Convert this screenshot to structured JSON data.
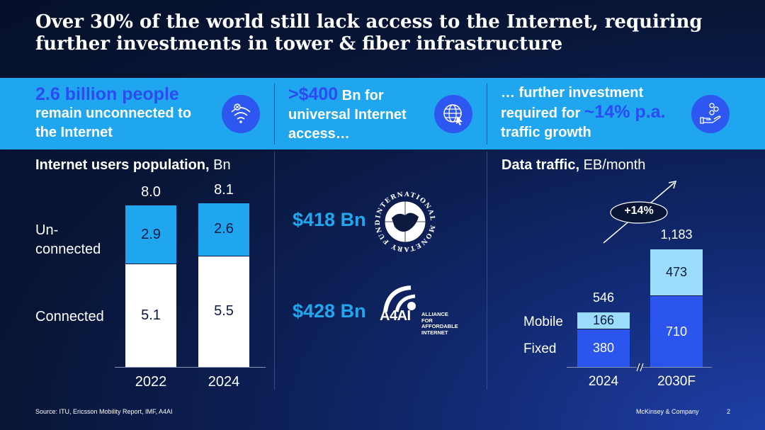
{
  "slide": {
    "title": "Over 30% of the world still lack access to the Internet, requiring further investments in tower & fiber infrastructure"
  },
  "banner": {
    "left": {
      "highlight": "2.6 billion people",
      "line2": "remain unconnected to",
      "line3": "the Internet",
      "icon": "wifi-off-icon"
    },
    "middle": {
      "highlight": ">$400",
      "rest1": " Bn for",
      "line2": "universal Internet",
      "line3": "access…",
      "icon": "globe-cursor-icon"
    },
    "right": {
      "line1": "… further investment",
      "pre": "required for ",
      "highlight": "~14% p.a.",
      "line3": "traffic growth",
      "icon": "hand-coins-icon"
    }
  },
  "left_chart": {
    "title_bold": "Internet users  population,",
    "title_rest": " Bn",
    "row_unconnected": "Un-\nconnected",
    "row_connected": "Connected",
    "chart_data": {
      "type": "bar",
      "stacked": true,
      "categories": [
        "2022",
        "2024"
      ],
      "series": [
        {
          "name": "Connected",
          "values": [
            5.1,
            5.5
          ]
        },
        {
          "name": "Unconnected",
          "values": [
            2.9,
            2.6
          ]
        }
      ],
      "totals": [
        "8.0",
        "8.1"
      ],
      "labels_connected": [
        "5.1",
        "5.5"
      ],
      "labels_unconnected": [
        "2.9",
        "2.6"
      ],
      "title": "Internet users population, Bn"
    },
    "colors": {
      "connected": "#ffffff",
      "unconnected": "#20a6ef"
    }
  },
  "middle": {
    "imf_amount": "$418 Bn",
    "imf_logo_text": "INTERNATIONAL MONETARY FUND",
    "a4ai_amount": "$428 Bn",
    "a4ai_logo_text": "A4AI",
    "a4ai_sub": [
      "ALLIANCE",
      "FOR",
      "AFFORDABLE",
      "INTERNET"
    ]
  },
  "right_chart": {
    "title_bold": "Data traffic,",
    "title_rest": " EB/month",
    "growth_label": "+14%",
    "row_mobile": "Mobile",
    "row_fixed": "Fixed",
    "chart_data": {
      "type": "bar",
      "stacked": true,
      "categories": [
        "2024",
        "2030F"
      ],
      "series": [
        {
          "name": "Fixed",
          "values": [
            380,
            710
          ]
        },
        {
          "name": "Mobile",
          "values": [
            166,
            473
          ]
        }
      ],
      "totals": [
        "546",
        "1,183"
      ],
      "labels_fixed": [
        "380",
        "710"
      ],
      "labels_mobile": [
        "166",
        "473"
      ],
      "title": "Data traffic, EB/month"
    },
    "colors": {
      "fixed": "#2b55ee",
      "mobile": "#9cdcfb"
    }
  },
  "footer": {
    "source": "Source: ITU, Ericsson Mobility Report, IMF, A4AI",
    "brand": "McKinsey & Company",
    "page": "2"
  }
}
